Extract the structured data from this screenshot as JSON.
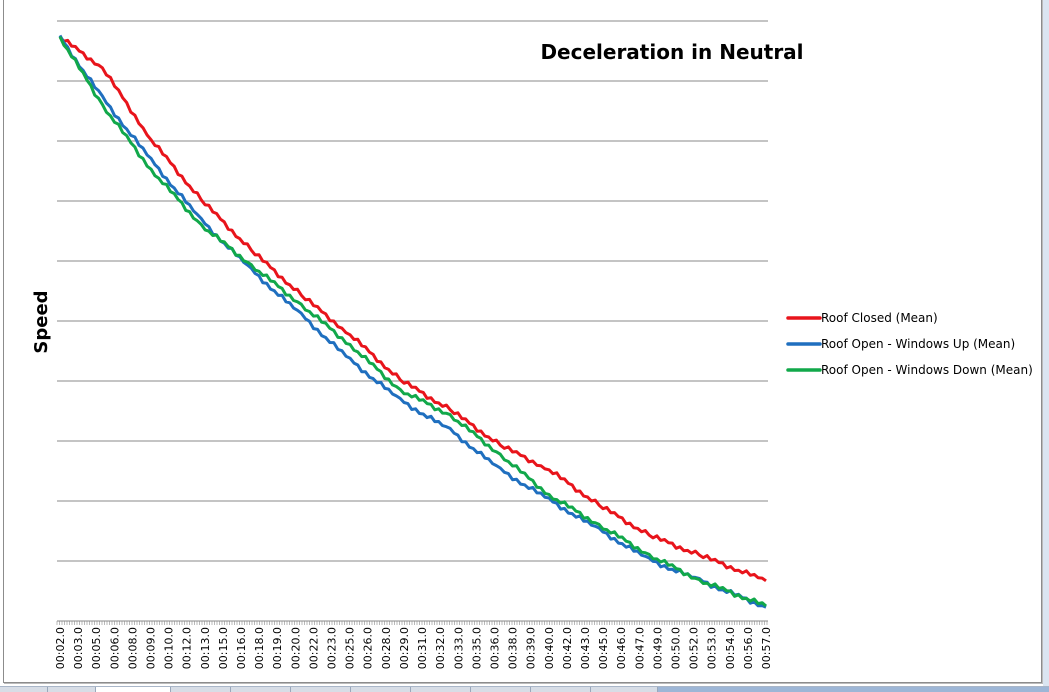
{
  "chart_data": {
    "type": "line",
    "title": "Deceleration in Neutral",
    "xlabel": "",
    "ylabel": "Speed",
    "ylim": [
      0,
      10
    ],
    "grid": true,
    "y_tick_labels_shown": false,
    "legend_position": "right",
    "x_tick_labels": [
      "00:02.0",
      "00:03.0",
      "00:05.0",
      "00:06.0",
      "00:08.0",
      "00:09.0",
      "00:10.0",
      "00:12.0",
      "00:13.0",
      "00:15.0",
      "00:16.0",
      "00:18.0",
      "00:19.0",
      "00:20.0",
      "00:22.0",
      "00:23.0",
      "00:25.0",
      "00:26.0",
      "00:28.0",
      "00:29.0",
      "00:31.0",
      "00:32.0",
      "00:33.0",
      "00:35.0",
      "00:36.0",
      "00:38.0",
      "00:39.0",
      "00:40.0",
      "00:42.0",
      "00:43.0",
      "00:45.0",
      "00:46.0",
      "00:47.0",
      "00:49.0",
      "00:50.0",
      "00:52.0",
      "00:53.0",
      "00:54.0",
      "00:56.0",
      "00:57.0"
    ],
    "x_seconds": [
      2,
      5.3,
      9.1,
      13.0,
      16.9,
      20.8,
      24.6,
      28.5,
      32.4,
      36.3,
      40.1,
      44.0,
      47.9,
      51.8,
      57
    ],
    "xlim_seconds": [
      2,
      57
    ],
    "series": [
      {
        "name": "Roof Closed (Mean)",
        "color": "#e8141b",
        "values": [
          9.73,
          9.22,
          8.02,
          7.02,
          6.18,
          5.43,
          4.77,
          4.02,
          3.52,
          2.93,
          2.52,
          1.93,
          1.43,
          1.1,
          0.67
        ]
      },
      {
        "name": "Roof Open - Windows Up (Mean)",
        "color": "#1f6fbf",
        "values": [
          9.73,
          8.72,
          7.68,
          6.68,
          5.85,
          5.1,
          4.35,
          3.68,
          3.18,
          2.52,
          2.02,
          1.52,
          1.02,
          0.68,
          0.23
        ]
      },
      {
        "name": "Roof Open - Windows Down (Mean)",
        "color": "#11a84a",
        "values": [
          9.73,
          8.6,
          7.52,
          6.6,
          5.93,
          5.27,
          4.6,
          3.85,
          3.43,
          2.77,
          2.1,
          1.6,
          1.1,
          0.68,
          0.25
        ]
      }
    ]
  }
}
